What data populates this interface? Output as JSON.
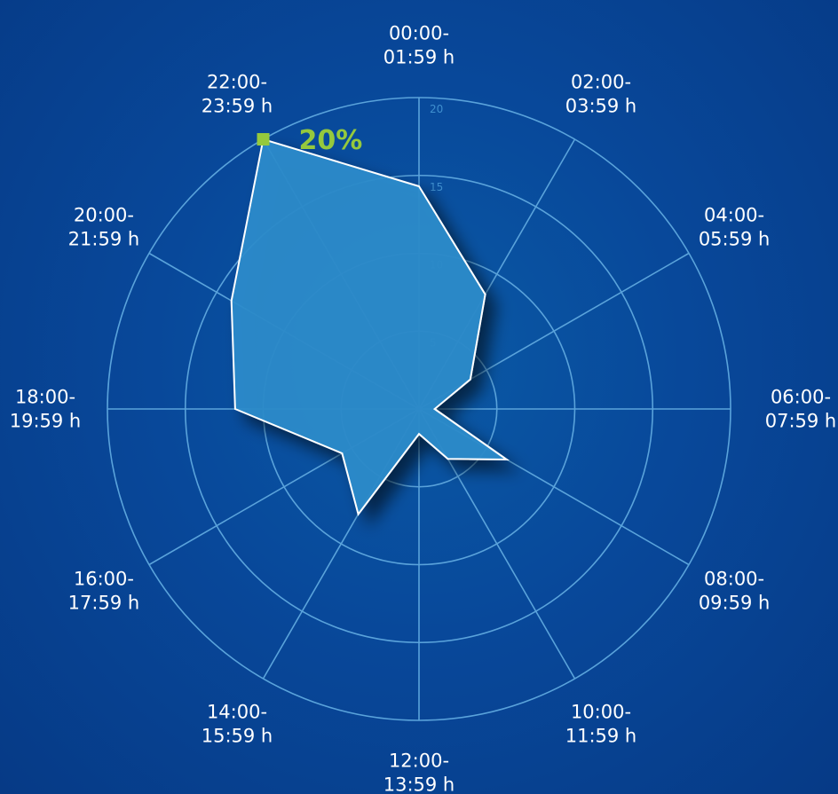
{
  "chart_data": {
    "type": "radar",
    "categories": [
      [
        "00:00-",
        "01:59 h"
      ],
      [
        "02:00-",
        "03:59 h"
      ],
      [
        "04:00-",
        "05:59 h"
      ],
      [
        "06:00-",
        "07:59 h"
      ],
      [
        "08:00-",
        "09:59 h"
      ],
      [
        "10:00-",
        "11:59 h"
      ],
      [
        "12:00-",
        "13:59 h"
      ],
      [
        "14:00-",
        "15:59 h"
      ],
      [
        "16:00-",
        "17:59 h"
      ],
      [
        "18:00-",
        "19:59 h"
      ],
      [
        "20:00-",
        "21:59 h"
      ],
      [
        "22:00-",
        "23:59 h"
      ]
    ],
    "values": [
      14.3,
      8.5,
      3.8,
      1.0,
      6.5,
      3.7,
      1.6,
      7.8,
      5.7,
      11.8,
      13.9,
      20
    ],
    "rlim": [
      0,
      20
    ],
    "ticks": [
      5,
      10,
      15,
      20
    ],
    "grid": true,
    "highlight": {
      "index": 11,
      "label": "20%",
      "color": "#95c93d"
    }
  }
}
